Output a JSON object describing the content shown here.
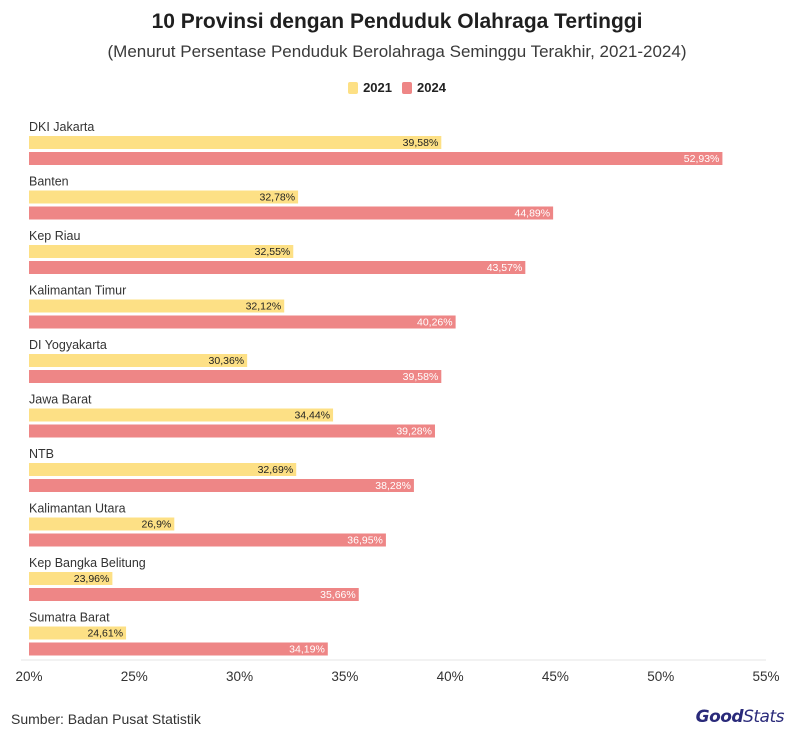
{
  "header": {
    "title": "10 Provinsi dengan Penduduk Olahraga Tertinggi",
    "subtitle": "(Menurut Persentase Penduduk Berolahraga Seminggu Terakhir, 2021-2024)"
  },
  "legend": {
    "items": [
      {
        "label": "2021",
        "color": "#fde085"
      },
      {
        "label": "2024",
        "color": "#ee8686"
      }
    ]
  },
  "footer": {
    "source": "Sumber: Badan Pusat Statistik",
    "logo_good": "Good",
    "logo_stats": "Stats"
  },
  "chart_data": {
    "type": "bar",
    "orientation": "horizontal",
    "title": "10 Provinsi dengan Penduduk Olahraga Tertinggi",
    "subtitle": "(Menurut Persentase Penduduk Berolahraga Seminggu Terakhir, 2021-2024)",
    "categories": [
      "DKI Jakarta",
      "Banten",
      "Kep Riau",
      "Kalimantan Timur",
      "DI Yogyakarta",
      "Jawa Barat",
      "NTB",
      "Kalimantan Utara",
      "Kep Bangka Belitung",
      "Sumatra Barat"
    ],
    "series": [
      {
        "name": "2021",
        "color": "#fde085",
        "label_color": "#222222",
        "values": [
          39.58,
          32.78,
          32.55,
          32.12,
          30.36,
          34.44,
          32.69,
          26.9,
          23.96,
          24.61
        ],
        "labels": [
          "39,58%",
          "32,78%",
          "32,55%",
          "32,12%",
          "30,36%",
          "34,44%",
          "32,69%",
          "26,9%",
          "23,96%",
          "24,61%"
        ]
      },
      {
        "name": "2024",
        "color": "#ee8686",
        "label_color": "#ffffff",
        "values": [
          52.93,
          44.89,
          43.57,
          40.26,
          39.58,
          39.28,
          38.28,
          36.95,
          35.66,
          34.19
        ],
        "labels": [
          "52,93%",
          "44,89%",
          "43,57%",
          "40,26%",
          "39,58%",
          "39,28%",
          "38,28%",
          "36,95%",
          "35,66%",
          "34,19%"
        ]
      }
    ],
    "xlim": [
      20,
      55
    ],
    "xticks": [
      20,
      25,
      30,
      35,
      40,
      45,
      50,
      55
    ],
    "xtick_labels": [
      "20%",
      "25%",
      "30%",
      "35%",
      "40%",
      "45%",
      "50%",
      "55%"
    ],
    "xlabel": "",
    "ylabel": "",
    "grid": false,
    "legend_position": "top-center"
  }
}
